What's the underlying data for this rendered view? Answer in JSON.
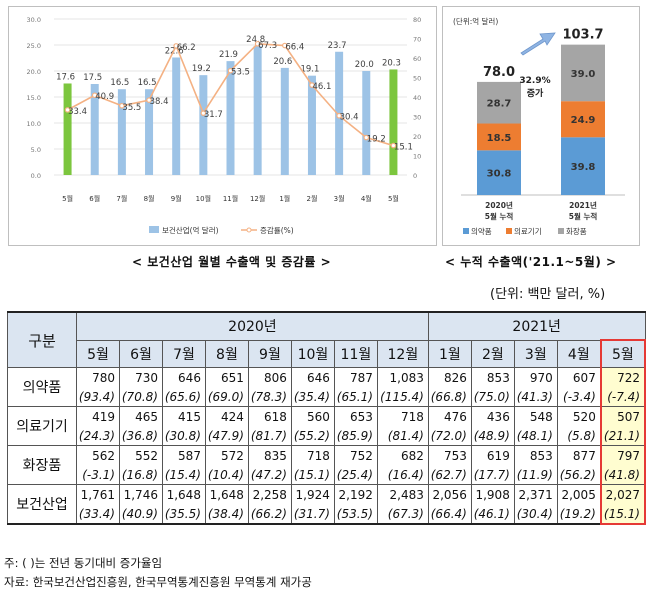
{
  "chart_data": [
    {
      "type": "bar",
      "categories": [
        "5월",
        "6월",
        "7월",
        "8월",
        "9월",
        "10월",
        "11월",
        "12월",
        "1월",
        "2월",
        "3월",
        "4월",
        "5월"
      ],
      "series": [
        {
          "name": "보건산업(억 달러)",
          "values": [
            17.6,
            17.5,
            16.5,
            16.5,
            22.6,
            19.2,
            21.9,
            24.8,
            20.6,
            19.1,
            23.7,
            20.0,
            20.3
          ],
          "kind": "bar"
        },
        {
          "name": "증감률(%)",
          "values": [
            33.4,
            40.9,
            35.5,
            38.4,
            66.2,
            31.7,
            53.5,
            67.3,
            66.4,
            46.1,
            30.4,
            19.2,
            15.1
          ],
          "kind": "line",
          "axis": "right"
        }
      ],
      "highlight_indices": [
        0,
        12
      ],
      "ylim": [
        0,
        30
      ],
      "y_ticks": [
        "0.0",
        "5.0",
        "10.0",
        "15.0",
        "20.0",
        "25.0",
        "30.0"
      ],
      "y2lim": [
        0,
        80
      ],
      "y2_ticks": [
        "0",
        "10",
        "20",
        "30",
        "40",
        "50",
        "60",
        "70",
        "80"
      ],
      "colors": {
        "bar": "#9dc3e6",
        "bar_highlight": "#7cc63e",
        "line": "#f4b183"
      }
    },
    {
      "type": "bar",
      "stacked": true,
      "unit_label": "(단위:억 달러)",
      "categories": [
        "2020년\n5월 누적",
        "2021년\n5월 누적"
      ],
      "series": [
        {
          "name": "의약품",
          "values": [
            30.8,
            39.8
          ],
          "color": "#5b9bd5"
        },
        {
          "name": "의료기기",
          "values": [
            18.5,
            24.9
          ],
          "color": "#ed7d31"
        },
        {
          "name": "화장품",
          "values": [
            28.7,
            39.0
          ],
          "color": "#a5a5a5"
        }
      ],
      "totals": [
        "78.0",
        "103.7"
      ],
      "growth_label": "32.9%\n증가"
    }
  ],
  "captions": {
    "left": "< 보건산업 월별 수출액 및 증감률 >",
    "right": "< 누적 수출액('21.1~5월) >"
  },
  "unit_text": "(단위: 백만 달러, %)",
  "table": {
    "corner": "구분",
    "year_headers": [
      "2020년",
      "2021년"
    ],
    "months": [
      "5월",
      "6월",
      "7월",
      "8월",
      "9월",
      "10월",
      "11월",
      "12월",
      "1월",
      "2월",
      "3월",
      "4월",
      "5월"
    ],
    "rows": [
      {
        "name": "의약품",
        "values": [
          "780",
          "730",
          "646",
          "651",
          "806",
          "646",
          "787",
          "1,083",
          "826",
          "853",
          "970",
          "607",
          "722"
        ],
        "pcts": [
          "(93.4)",
          "(70.8)",
          "(65.6)",
          "(69.0)",
          "(78.3)",
          "(35.4)",
          "(65.1)",
          "(115.4)",
          "(66.8)",
          "(75.0)",
          "(41.3)",
          "(-3.4)",
          "(-7.4)"
        ]
      },
      {
        "name": "의료기기",
        "values": [
          "419",
          "465",
          "415",
          "424",
          "618",
          "560",
          "653",
          "718",
          "476",
          "436",
          "548",
          "520",
          "507"
        ],
        "pcts": [
          "(24.3)",
          "(36.8)",
          "(30.8)",
          "(47.9)",
          "(81.7)",
          "(55.2)",
          "(85.9)",
          "(81.4)",
          "(72.0)",
          "(48.9)",
          "(48.1)",
          "(5.8)",
          "(21.1)"
        ]
      },
      {
        "name": "화장품",
        "values": [
          "562",
          "552",
          "587",
          "572",
          "835",
          "718",
          "752",
          "682",
          "753",
          "619",
          "853",
          "877",
          "797"
        ],
        "pcts": [
          "(-3.1)",
          "(16.8)",
          "(15.4)",
          "(10.4)",
          "(47.2)",
          "(15.1)",
          "(25.4)",
          "(16.4)",
          "(62.7)",
          "(17.7)",
          "(11.9)",
          "(56.2)",
          "(41.8)"
        ]
      },
      {
        "name": "보건산업",
        "values": [
          "1,761",
          "1,746",
          "1,648",
          "1,648",
          "2,258",
          "1,924",
          "2,192",
          "2,483",
          "2,056",
          "1,908",
          "2,371",
          "2,005",
          "2,027"
        ],
        "pcts": [
          "(33.4)",
          "(40.9)",
          "(35.5)",
          "(38.4)",
          "(66.2)",
          "(31.7)",
          "(53.5)",
          "(67.3)",
          "(66.4)",
          "(46.1)",
          "(30.4)",
          "(19.2)",
          "(15.1)"
        ]
      }
    ]
  },
  "notes": [
    "주: (   )는 전년 동기대비 증가율임",
    "자료: 한국보건산업진흥원, 한국무역통계진흥원 무역통계 재가공"
  ]
}
